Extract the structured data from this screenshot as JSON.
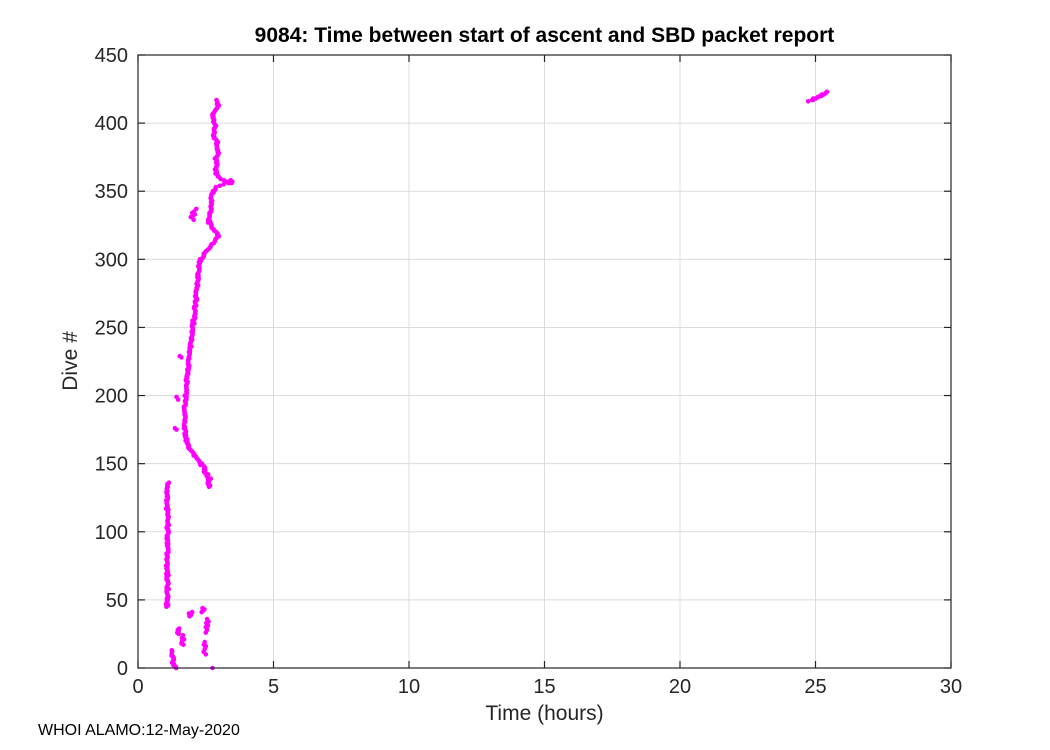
{
  "figure": {
    "annotation": "WHOI ALAMO:12-May-2020"
  },
  "chart_data": {
    "type": "scatter",
    "title": "9084: Time between start of ascent and SBD packet report",
    "xlabel": "Time (hours)",
    "ylabel": "Dive #",
    "xlim": [
      0,
      30
    ],
    "ylim": [
      0,
      450
    ],
    "xticks": [
      0,
      5,
      10,
      15,
      20,
      25,
      30
    ],
    "yticks": [
      0,
      50,
      100,
      150,
      200,
      250,
      300,
      350,
      400,
      450
    ],
    "grid": true,
    "legend": "none",
    "marker": {
      "shape": "filled-dot",
      "color": "#FF00FF",
      "radius_px": 2.3
    },
    "axis_color": "#262626",
    "grid_color": "#dcdcdc",
    "jitter_seed": 9084,
    "trace_segments": [
      {
        "name": "bottom-left-blob-dives-0-13-near-1.3h",
        "range": [
          0,
          13
        ],
        "jitter": 0.05,
        "anchors": [
          [
            0,
            1.38
          ],
          [
            4,
            1.3
          ],
          [
            8,
            1.27
          ],
          [
            13,
            1.24
          ]
        ]
      },
      {
        "name": "vertical-line-dives-45-136-near-1.1h",
        "range": [
          45,
          136
        ],
        "jitter": 0.045,
        "anchors": [
          [
            45,
            1.07
          ],
          [
            60,
            1.1
          ],
          [
            75,
            1.07
          ],
          [
            90,
            1.09
          ],
          [
            105,
            1.1
          ],
          [
            120,
            1.07
          ],
          [
            136,
            1.1
          ]
        ]
      },
      {
        "name": "blob-dives-133-150-near-2.5h",
        "range": [
          133,
          150
        ],
        "jitter": 0.07,
        "anchors": [
          [
            133,
            2.62
          ],
          [
            136,
            2.58
          ],
          [
            139,
            2.64
          ],
          [
            142,
            2.55
          ],
          [
            146,
            2.45
          ],
          [
            150,
            2.32
          ]
        ]
      },
      {
        "name": "main-drift-dives-150-300",
        "range": [
          150,
          300
        ],
        "jitter": 0.045,
        "anchors": [
          [
            150,
            2.3
          ],
          [
            155,
            2.12
          ],
          [
            160,
            1.95
          ],
          [
            165,
            1.82
          ],
          [
            170,
            1.75
          ],
          [
            178,
            1.7
          ],
          [
            190,
            1.73
          ],
          [
            200,
            1.76
          ],
          [
            212,
            1.8
          ],
          [
            225,
            1.87
          ],
          [
            238,
            1.95
          ],
          [
            250,
            2.02
          ],
          [
            262,
            2.1
          ],
          [
            275,
            2.16
          ],
          [
            288,
            2.22
          ],
          [
            300,
            2.3
          ]
        ]
      },
      {
        "name": "wiggle-dives-300-330",
        "range": [
          300,
          330
        ],
        "jitter": 0.05,
        "anchors": [
          [
            300,
            2.3
          ],
          [
            304,
            2.45
          ],
          [
            308,
            2.6
          ],
          [
            312,
            2.8
          ],
          [
            316,
            2.95
          ],
          [
            319,
            2.9
          ],
          [
            322,
            2.8
          ],
          [
            326,
            2.65
          ],
          [
            330,
            2.6
          ]
        ]
      },
      {
        "name": "rise-to-bulge-dives-330-356",
        "range": [
          330,
          356
        ],
        "jitter": 0.05,
        "anchors": [
          [
            330,
            2.6
          ],
          [
            335,
            2.66
          ],
          [
            340,
            2.7
          ],
          [
            346,
            2.72
          ],
          [
            350,
            2.78
          ],
          [
            353,
            2.9
          ],
          [
            356,
            3.3
          ]
        ]
      },
      {
        "name": "upper-trace-dives-356-417",
        "range": [
          356,
          417
        ],
        "jitter": 0.04,
        "anchors": [
          [
            356,
            3.35
          ],
          [
            358,
            3.15
          ],
          [
            360,
            3.0
          ],
          [
            362,
            2.9
          ],
          [
            366,
            2.85
          ],
          [
            370,
            2.9
          ],
          [
            374,
            2.87
          ],
          [
            378,
            2.95
          ],
          [
            382,
            2.9
          ],
          [
            386,
            2.92
          ],
          [
            390,
            2.78
          ],
          [
            394,
            2.8
          ],
          [
            398,
            2.85
          ],
          [
            402,
            2.78
          ],
          [
            406,
            2.75
          ],
          [
            409,
            2.82
          ],
          [
            411,
            2.9
          ],
          [
            413,
            2.95
          ],
          [
            415,
            2.92
          ],
          [
            417,
            2.88
          ]
        ]
      },
      {
        "name": "outlier-cluster-dives-416-423-near-25h",
        "range": [
          416,
          423
        ],
        "jitter": 0.05,
        "anchors": [
          [
            416,
            24.78
          ],
          [
            418,
            24.95
          ],
          [
            420,
            25.15
          ],
          [
            423,
            25.45
          ]
        ]
      }
    ],
    "extra_points": [
      [
        0,
        2.75
      ],
      [
        356,
        3.45
      ],
      [
        357,
        3.48
      ],
      [
        357,
        3.35
      ],
      [
        358,
        3.42
      ],
      [
        329,
        2.05
      ],
      [
        331,
        1.95
      ],
      [
        332,
        2.02
      ],
      [
        333,
        2.1
      ],
      [
        334,
        2.0
      ],
      [
        335,
        2.06
      ],
      [
        337,
        2.15
      ],
      [
        175,
        1.42
      ],
      [
        176,
        1.36
      ],
      [
        197,
        1.48
      ],
      [
        199,
        1.42
      ],
      [
        228,
        1.6
      ],
      [
        229,
        1.54
      ],
      [
        10,
        2.5
      ],
      [
        12,
        2.42
      ],
      [
        14,
        2.47
      ],
      [
        16,
        2.5
      ],
      [
        17,
        2.43
      ],
      [
        19,
        2.46
      ],
      [
        17,
        1.68
      ],
      [
        18,
        1.6
      ],
      [
        20,
        1.63
      ],
      [
        21,
        1.7
      ],
      [
        22,
        1.62
      ],
      [
        24,
        1.66
      ],
      [
        25,
        1.5
      ],
      [
        26,
        1.45
      ],
      [
        27,
        1.5
      ],
      [
        28,
        1.47
      ],
      [
        29,
        1.52
      ],
      [
        26,
        2.5
      ],
      [
        28,
        2.55
      ],
      [
        30,
        2.5
      ],
      [
        31,
        2.58
      ],
      [
        33,
        2.52
      ],
      [
        34,
        2.6
      ],
      [
        36,
        2.55
      ],
      [
        38,
        1.9
      ],
      [
        39,
        1.96
      ],
      [
        40,
        1.88
      ],
      [
        41,
        2.0
      ],
      [
        41,
        2.35
      ],
      [
        42,
        2.4
      ],
      [
        43,
        2.45
      ],
      [
        44,
        2.38
      ],
      [
        417,
        24.88
      ],
      [
        418,
        25.0
      ],
      [
        419,
        25.08
      ],
      [
        420,
        25.22
      ],
      [
        421,
        25.3
      ],
      [
        422,
        25.38
      ]
    ]
  }
}
